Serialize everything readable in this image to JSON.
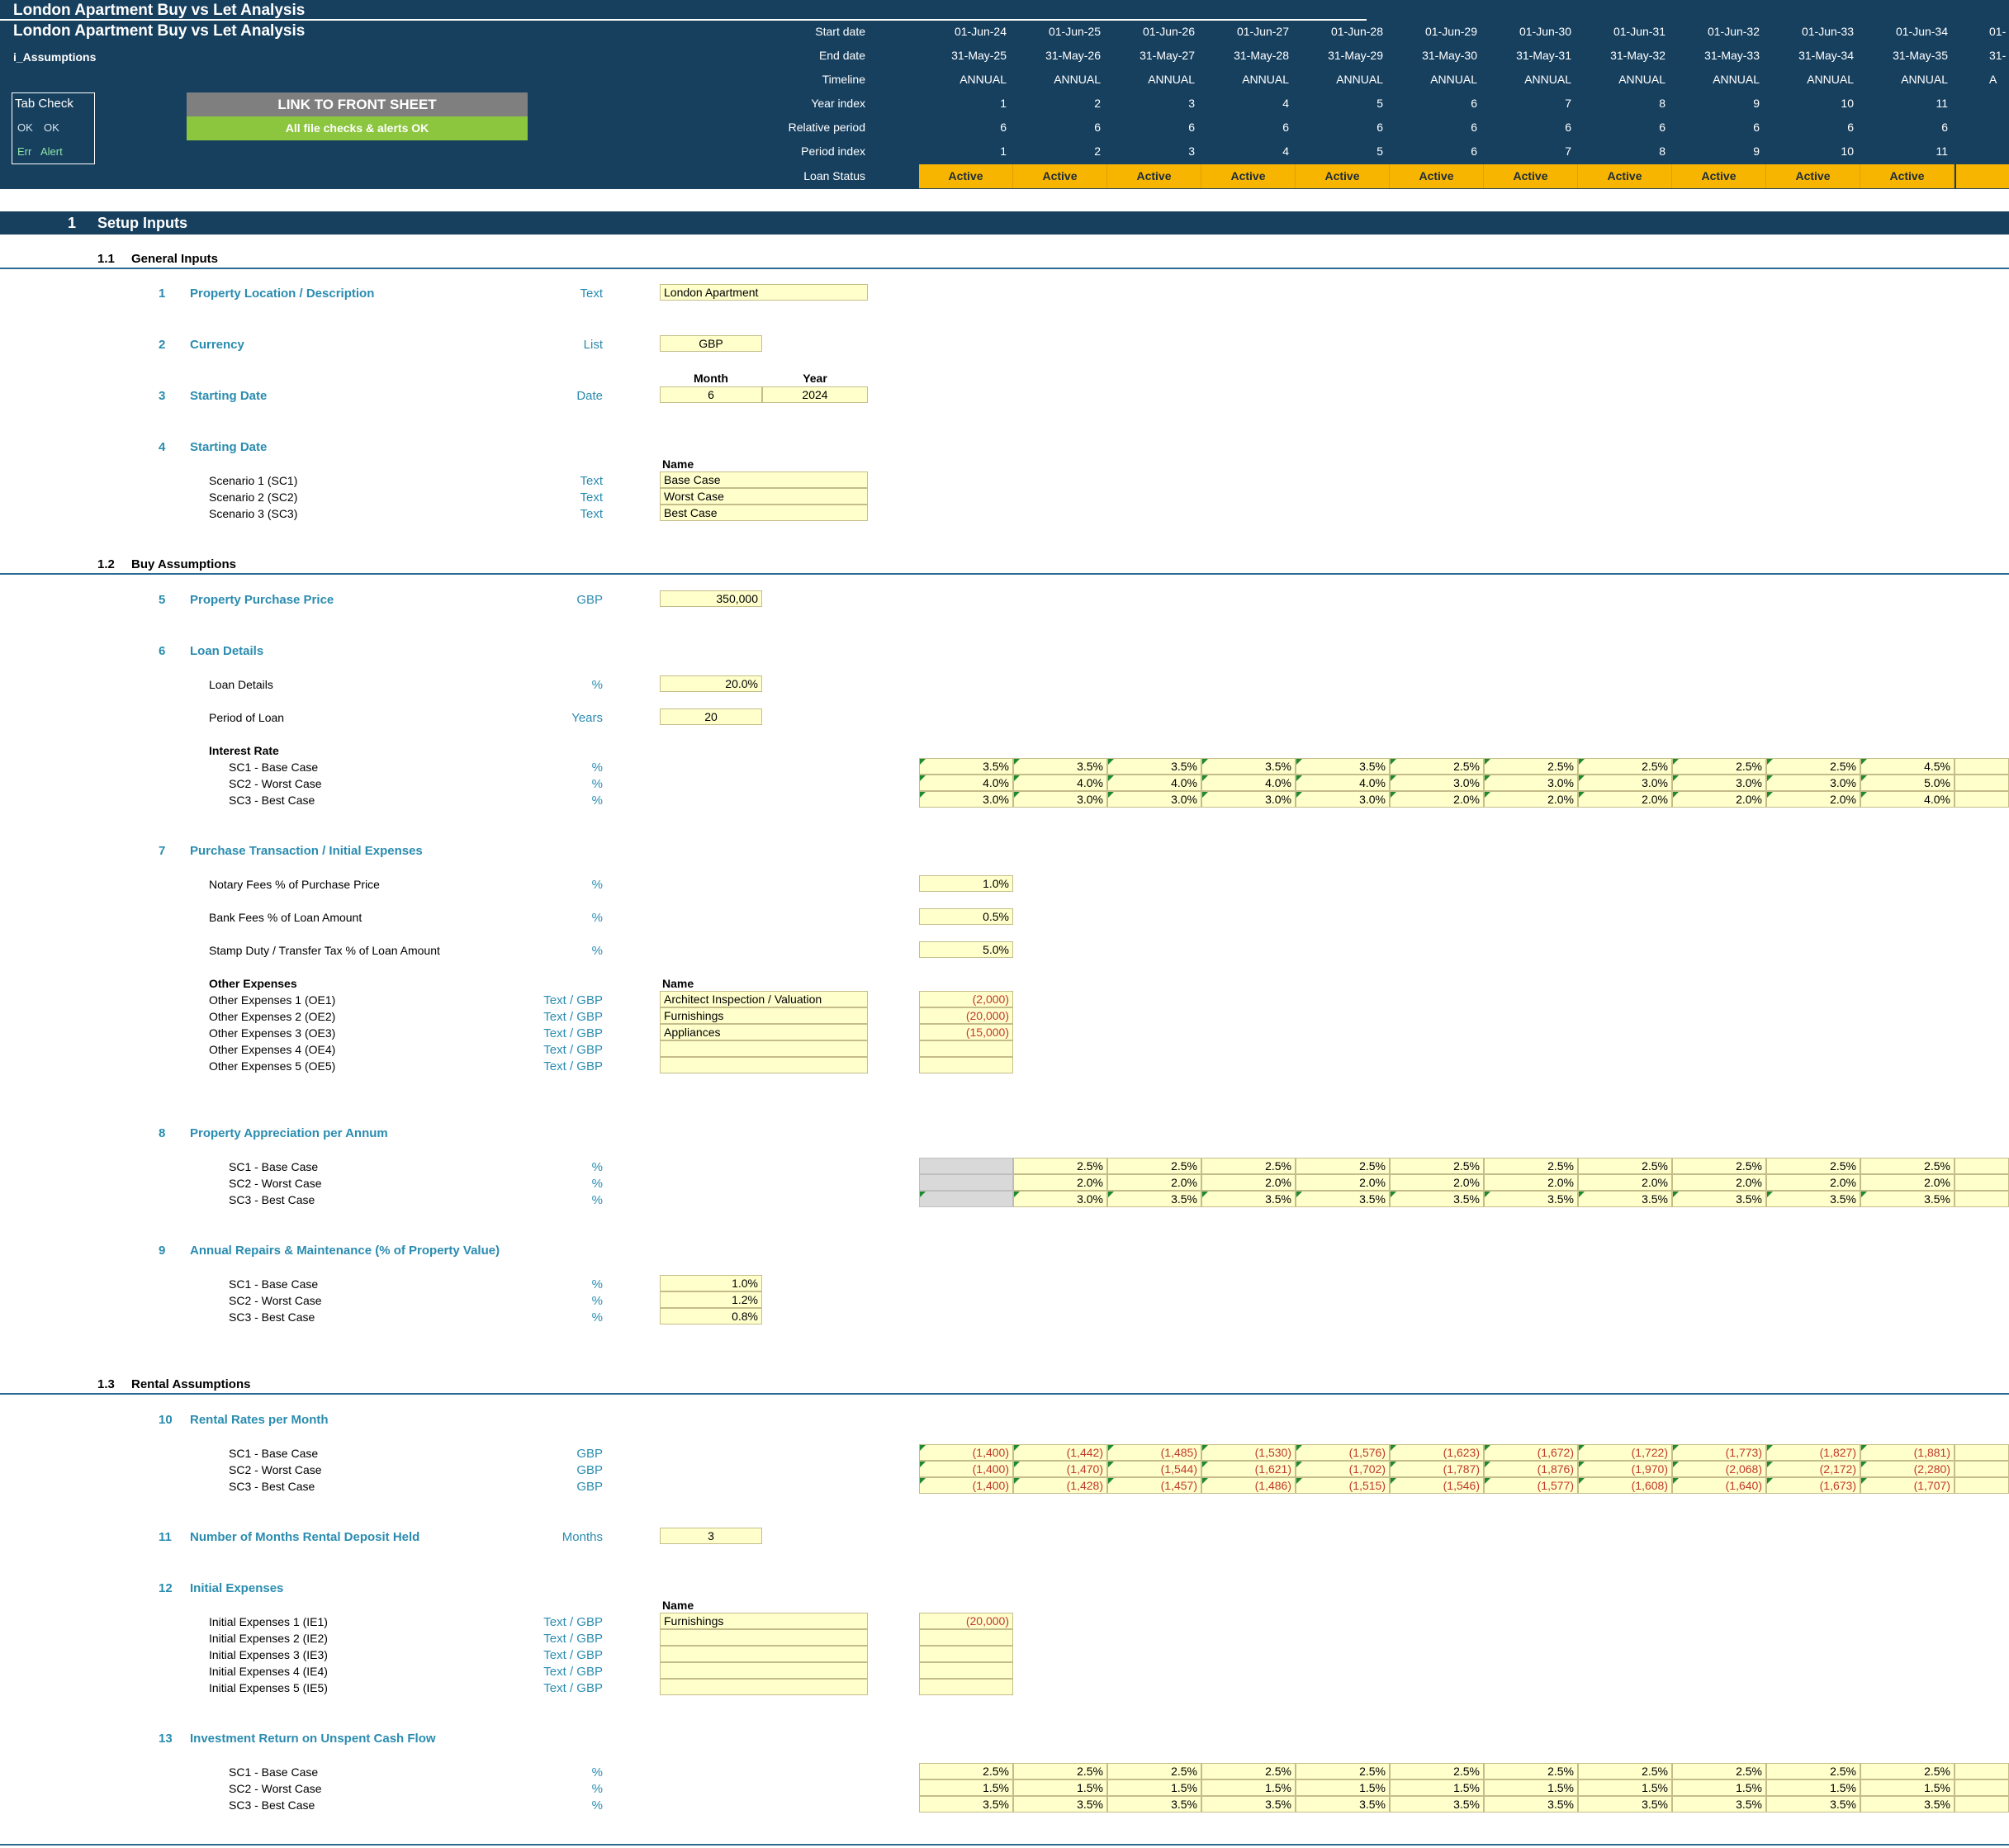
{
  "header": {
    "title": "London Apartment Buy vs Let Analysis",
    "subtitle": "London Apartment Buy vs Let Analysis",
    "sheet": "i_Assumptions",
    "tab_check": {
      "title": "Tab Check",
      "ok_a": "OK",
      "ok_b": "OK",
      "err": "Err",
      "alert": "Alert"
    },
    "link_button": "LINK TO FRONT SHEET",
    "checks_status": "All file checks & alerts OK",
    "row_labels": [
      "Start date",
      "End date",
      "Timeline",
      "Year index",
      "Relative period",
      "Period index",
      "Loan Status"
    ],
    "columns": [
      {
        "start": "01-Jun-24",
        "end": "31-May-25",
        "timeline": "ANNUAL",
        "year": "1",
        "rel": "6",
        "period": "1",
        "status": "Active"
      },
      {
        "start": "01-Jun-25",
        "end": "31-May-26",
        "timeline": "ANNUAL",
        "year": "2",
        "rel": "6",
        "period": "2",
        "status": "Active"
      },
      {
        "start": "01-Jun-26",
        "end": "31-May-27",
        "timeline": "ANNUAL",
        "year": "3",
        "rel": "6",
        "period": "3",
        "status": "Active"
      },
      {
        "start": "01-Jun-27",
        "end": "31-May-28",
        "timeline": "ANNUAL",
        "year": "4",
        "rel": "6",
        "period": "4",
        "status": "Active"
      },
      {
        "start": "01-Jun-28",
        "end": "31-May-29",
        "timeline": "ANNUAL",
        "year": "5",
        "rel": "6",
        "period": "5",
        "status": "Active"
      },
      {
        "start": "01-Jun-29",
        "end": "31-May-30",
        "timeline": "ANNUAL",
        "year": "6",
        "rel": "6",
        "period": "6",
        "status": "Active"
      },
      {
        "start": "01-Jun-30",
        "end": "31-May-31",
        "timeline": "ANNUAL",
        "year": "7",
        "rel": "6",
        "period": "7",
        "status": "Active"
      },
      {
        "start": "01-Jun-31",
        "end": "31-May-32",
        "timeline": "ANNUAL",
        "year": "8",
        "rel": "6",
        "period": "8",
        "status": "Active"
      },
      {
        "start": "01-Jun-32",
        "end": "31-May-33",
        "timeline": "ANNUAL",
        "year": "9",
        "rel": "6",
        "period": "9",
        "status": "Active"
      },
      {
        "start": "01-Jun-33",
        "end": "31-May-34",
        "timeline": "ANNUAL",
        "year": "10",
        "rel": "6",
        "period": "10",
        "status": "Active"
      },
      {
        "start": "01-Jun-34",
        "end": "31-May-35",
        "timeline": "ANNUAL",
        "year": "11",
        "rel": "6",
        "period": "11",
        "status": "Active"
      }
    ],
    "partial_col": {
      "start": "01-",
      "end": "31-",
      "timeline": "A"
    }
  },
  "section1": {
    "num": "1",
    "title": "Setup Inputs"
  },
  "sub11": {
    "num": "1.1",
    "title": "General Inputs"
  },
  "sub12": {
    "num": "1.2",
    "title": "Buy Assumptions"
  },
  "sub13": {
    "num": "1.3",
    "title": "Rental Assumptions"
  },
  "items": {
    "i1": {
      "num": "1",
      "label": "Property Location / Description",
      "unit": "Text",
      "value": "London Apartment"
    },
    "i2": {
      "num": "2",
      "label": "Currency",
      "unit": "List",
      "value": "GBP"
    },
    "i3": {
      "num": "3",
      "label": "Starting Date",
      "unit": "Date",
      "month_hdr": "Month",
      "year_hdr": "Year",
      "month": "6",
      "year": "2024"
    },
    "i4": {
      "num": "4",
      "label": "Starting Date",
      "name_hdr": "Name",
      "rows": [
        {
          "label": "Scenario 1 (SC1)",
          "unit": "Text",
          "value": "Base Case"
        },
        {
          "label": "Scenario 2 (SC2)",
          "unit": "Text",
          "value": "Worst Case"
        },
        {
          "label": "Scenario 3 (SC3)",
          "unit": "Text",
          "value": "Best Case"
        }
      ]
    },
    "i5": {
      "num": "5",
      "label": "Property Purchase Price",
      "unit": "GBP",
      "value": "350,000"
    },
    "i6": {
      "num": "6",
      "label": "Loan Details",
      "loan_label": "Loan Details",
      "loan_unit": "%",
      "loan_value": "20.0%",
      "period_label": "Period of Loan",
      "period_unit": "Years",
      "period_value": "20",
      "rate_hdr": "Interest Rate",
      "rates": [
        {
          "label": "SC1 - Base Case",
          "unit": "%",
          "values": [
            "3.5%",
            "3.5%",
            "3.5%",
            "3.5%",
            "3.5%",
            "2.5%",
            "2.5%",
            "2.5%",
            "2.5%",
            "2.5%",
            "4.5%"
          ]
        },
        {
          "label": "SC2 - Worst Case",
          "unit": "%",
          "values": [
            "4.0%",
            "4.0%",
            "4.0%",
            "4.0%",
            "4.0%",
            "3.0%",
            "3.0%",
            "3.0%",
            "3.0%",
            "3.0%",
            "5.0%"
          ]
        },
        {
          "label": "SC3 - Best Case",
          "unit": "%",
          "values": [
            "3.0%",
            "3.0%",
            "3.0%",
            "3.0%",
            "3.0%",
            "2.0%",
            "2.0%",
            "2.0%",
            "2.0%",
            "2.0%",
            "4.0%"
          ]
        }
      ]
    },
    "i7": {
      "num": "7",
      "label": "Purchase Transaction / Initial Expenses",
      "fees": [
        {
          "label": "Notary Fees  % of Purchase Price",
          "unit": "%",
          "value": "1.0%"
        },
        {
          "label": "Bank Fees % of Loan Amount",
          "unit": "%",
          "value": "0.5%"
        },
        {
          "label": "Stamp Duty / Transfer Tax % of Loan Amount",
          "unit": "%",
          "value": "5.0%"
        }
      ],
      "other_hdr": "Other Expenses",
      "name_hdr": "Name",
      "other": [
        {
          "label": "Other Expenses 1 (OE1)",
          "unit": "Text / GBP",
          "name": "Architect Inspection / Valuation",
          "value": "(2,000)"
        },
        {
          "label": "Other Expenses 2 (OE2)",
          "unit": "Text / GBP",
          "name": "Furnishings",
          "value": "(20,000)"
        },
        {
          "label": "Other Expenses 3 (OE3)",
          "unit": "Text / GBP",
          "name": "Appliances",
          "value": "(15,000)"
        },
        {
          "label": "Other Expenses 4 (OE4)",
          "unit": "Text / GBP",
          "name": "",
          "value": ""
        },
        {
          "label": "Other Expenses 5 (OE5)",
          "unit": "Text / GBP",
          "name": "",
          "value": ""
        }
      ]
    },
    "i8": {
      "num": "8",
      "label": "Property Appreciation per Annum",
      "rows": [
        {
          "label": "SC1 - Base Case",
          "unit": "%",
          "values": [
            "",
            "2.5%",
            "2.5%",
            "2.5%",
            "2.5%",
            "2.5%",
            "2.5%",
            "2.5%",
            "2.5%",
            "2.5%",
            "2.5%"
          ]
        },
        {
          "label": "SC2 - Worst Case",
          "unit": "%",
          "values": [
            "",
            "2.0%",
            "2.0%",
            "2.0%",
            "2.0%",
            "2.0%",
            "2.0%",
            "2.0%",
            "2.0%",
            "2.0%",
            "2.0%"
          ]
        },
        {
          "label": "SC3 - Best Case",
          "unit": "%",
          "values": [
            "",
            "3.0%",
            "3.5%",
            "3.5%",
            "3.5%",
            "3.5%",
            "3.5%",
            "3.5%",
            "3.5%",
            "3.5%",
            "3.5%"
          ]
        }
      ]
    },
    "i9": {
      "num": "9",
      "label": "Annual Repairs & Maintenance (% of Property Value)",
      "rows": [
        {
          "label": "SC1 - Base Case",
          "unit": "%",
          "value": "1.0%"
        },
        {
          "label": "SC2 - Worst Case",
          "unit": "%",
          "value": "1.2%"
        },
        {
          "label": "SC3 - Best Case",
          "unit": "%",
          "value": "0.8%"
        }
      ]
    },
    "i10": {
      "num": "10",
      "label": "Rental Rates per Month",
      "rows": [
        {
          "label": "SC1 - Base Case",
          "unit": "GBP",
          "values": [
            "(1,400)",
            "(1,442)",
            "(1,485)",
            "(1,530)",
            "(1,576)",
            "(1,623)",
            "(1,672)",
            "(1,722)",
            "(1,773)",
            "(1,827)",
            "(1,881)"
          ]
        },
        {
          "label": "SC2 - Worst Case",
          "unit": "GBP",
          "values": [
            "(1,400)",
            "(1,470)",
            "(1,544)",
            "(1,621)",
            "(1,702)",
            "(1,787)",
            "(1,876)",
            "(1,970)",
            "(2,068)",
            "(2,172)",
            "(2,280)"
          ]
        },
        {
          "label": "SC3 - Best Case",
          "unit": "GBP",
          "values": [
            "(1,400)",
            "(1,428)",
            "(1,457)",
            "(1,486)",
            "(1,515)",
            "(1,546)",
            "(1,577)",
            "(1,608)",
            "(1,640)",
            "(1,673)",
            "(1,707)"
          ]
        }
      ]
    },
    "i11": {
      "num": "11",
      "label": "Number of Months Rental Deposit Held",
      "unit": "Months",
      "value": "3"
    },
    "i12": {
      "num": "12",
      "label": "Initial Expenses",
      "name_hdr": "Name",
      "rows": [
        {
          "label": "Initial Expenses 1 (IE1)",
          "unit": "Text / GBP",
          "name": "Furnishings",
          "value": "(20,000)"
        },
        {
          "label": "Initial Expenses 2 (IE2)",
          "unit": "Text / GBP",
          "name": "",
          "value": ""
        },
        {
          "label": "Initial Expenses 3 (IE3)",
          "unit": "Text / GBP",
          "name": "",
          "value": ""
        },
        {
          "label": "Initial Expenses 4 (IE4)",
          "unit": "Text / GBP",
          "name": "",
          "value": ""
        },
        {
          "label": "Initial Expenses 5 (IE5)",
          "unit": "Text / GBP",
          "name": "",
          "value": ""
        }
      ]
    },
    "i13": {
      "num": "13",
      "label": "Investment Return on Unspent Cash Flow",
      "rows": [
        {
          "label": "SC1 - Base Case",
          "unit": "%",
          "values": [
            "2.5%",
            "2.5%",
            "2.5%",
            "2.5%",
            "2.5%",
            "2.5%",
            "2.5%",
            "2.5%",
            "2.5%",
            "2.5%",
            "2.5%"
          ]
        },
        {
          "label": "SC2 - Worst Case",
          "unit": "%",
          "values": [
            "1.5%",
            "1.5%",
            "1.5%",
            "1.5%",
            "1.5%",
            "1.5%",
            "1.5%",
            "1.5%",
            "1.5%",
            "1.5%",
            "1.5%"
          ]
        },
        {
          "label": "SC3 - Best Case",
          "unit": "%",
          "values": [
            "3.5%",
            "3.5%",
            "3.5%",
            "3.5%",
            "3.5%",
            "3.5%",
            "3.5%",
            "3.5%",
            "3.5%",
            "3.5%",
            "3.5%"
          ]
        }
      ]
    }
  },
  "colors": {
    "navy": "#17405f",
    "input_fill": "#ffffcc",
    "status_fill": "#f7b500",
    "button_grey": "#7f7f7f",
    "ok_green": "#8cc63f",
    "label_teal": "#2a8cb0",
    "negative": "#c0392b"
  }
}
